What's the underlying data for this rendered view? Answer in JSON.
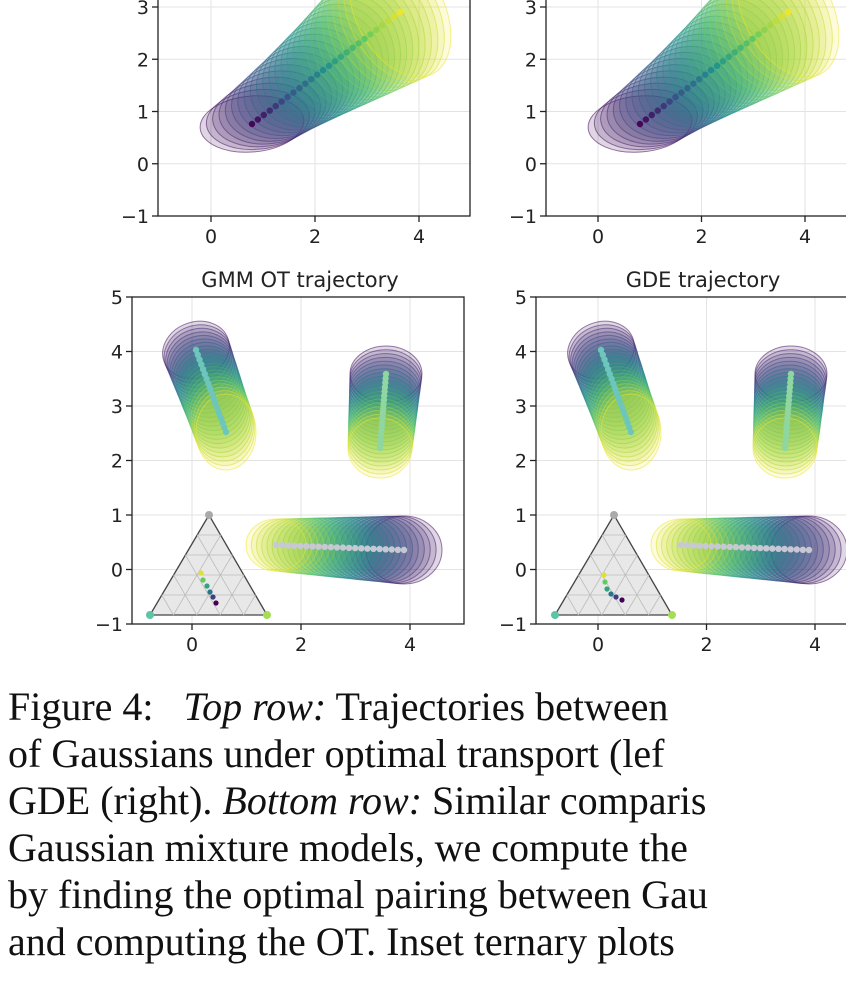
{
  "figure": {
    "panels": [
      {
        "id": "top-left",
        "title": "",
        "x_ticks": [
          "0",
          "2",
          "4"
        ],
        "y_ticks": [
          "−1",
          "0",
          "1",
          "2",
          "3"
        ],
        "xlim": [
          -1,
          4.8
        ],
        "ylim": [
          -1,
          3.2
        ]
      },
      {
        "id": "top-right",
        "title": "",
        "x_ticks": [
          "0",
          "2",
          "4"
        ],
        "y_ticks": [
          "−1",
          "0",
          "1",
          "2",
          "3"
        ],
        "xlim": [
          -1,
          4.8
        ],
        "ylim": [
          -1,
          3.2
        ]
      },
      {
        "id": "bottom-left",
        "title": "GMM OT trajectory",
        "x_ticks": [
          "0",
          "2",
          "4"
        ],
        "y_ticks": [
          "−1",
          "0",
          "1",
          "2",
          "3",
          "4",
          "5"
        ],
        "xlim": [
          -1,
          4.8
        ],
        "ylim": [
          -1,
          5
        ]
      },
      {
        "id": "bottom-right",
        "title": "GDE trajectory",
        "x_ticks": [
          "0",
          "2",
          "4"
        ],
        "y_ticks": [
          "−1",
          "0",
          "1",
          "2",
          "3",
          "4",
          "5"
        ],
        "xlim": [
          -1,
          4.8
        ],
        "ylim": [
          -1,
          5
        ]
      }
    ],
    "colormap": [
      "#440154",
      "#3b528b",
      "#21918c",
      "#5ec962",
      "#fde725"
    ],
    "ternary_vertex_colors": [
      "#aaaaaa",
      "#5ec4a6",
      "#a6dd55"
    ]
  },
  "caption": {
    "figure_label": "Figure 4:",
    "top_row_label": "Top row:",
    "line1_rest": "Trajectories between",
    "line2": "of Gaussians under optimal transport (lef",
    "line3_start": "GDE (right).",
    "bottom_row_label": "Bottom row:",
    "line3_rest": "Similar comparis",
    "line4": "Gaussian mixture models, we compute the",
    "line5": "by finding the optimal pairing between Gau",
    "line6": "and computing the OT. Inset ternary plots"
  }
}
